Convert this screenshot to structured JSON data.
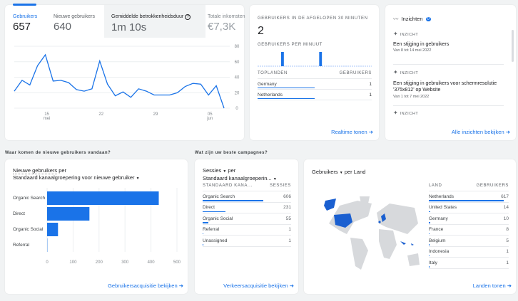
{
  "overview": {
    "tabs": [
      {
        "label": "Gebruikers",
        "value": "657",
        "active": true
      },
      {
        "label": "Nieuwe gebruikers",
        "value": "640"
      },
      {
        "label": "Gemiddelde betrokkenheidsduur",
        "value": "1m 10s"
      },
      {
        "label": "Totale inkomsten",
        "value": "€7,3K"
      }
    ]
  },
  "chart_data": {
    "type": "line",
    "x": [
      "11 mei",
      "12 mei",
      "13 mei",
      "14 mei",
      "15 mei",
      "16 mei",
      "17 mei",
      "18 mei",
      "19 mei",
      "20 mei",
      "21 mei",
      "22 mei",
      "23 mei",
      "24 mei",
      "25 mei",
      "26 mei",
      "27 mei",
      "28 mei",
      "29 mei",
      "30 mei",
      "31 mei",
      "1 jun",
      "2 jun",
      "3 jun",
      "4 jun",
      "5 jun",
      "6 jun",
      "7 jun"
    ],
    "values": [
      22,
      36,
      30,
      55,
      69,
      35,
      36,
      33,
      24,
      22,
      25,
      61,
      31,
      16,
      21,
      14,
      25,
      22,
      17,
      17,
      17,
      20,
      28,
      32,
      31,
      17,
      29,
      0
    ],
    "ylim": [
      0,
      80
    ],
    "yticks": [
      "0",
      "20",
      "40",
      "60",
      "80"
    ],
    "xticks": [
      {
        "label": "15",
        "sub": "mei",
        "index": 4
      },
      {
        "label": "22",
        "sub": "",
        "index": 11
      },
      {
        "label": "29",
        "sub": "",
        "index": 18
      },
      {
        "label": "05",
        "sub": "jun",
        "index": 25
      }
    ],
    "color": "#1a73e8",
    "grid": true
  },
  "realtime": {
    "title": "Gebruikers in de afgelopen 30 minuten",
    "value": "2",
    "per_minute": "Gebruikers per minuut",
    "bars": [
      0,
      0,
      0,
      0,
      0,
      0,
      1,
      0,
      0,
      0,
      0,
      0,
      0,
      0,
      0,
      0,
      1,
      0,
      0,
      0,
      0,
      0,
      0,
      0,
      0,
      0,
      0,
      0,
      0,
      0
    ],
    "col1": "Toplanden",
    "col2": "Gebruikers",
    "rows": [
      {
        "name": "Germany",
        "value": "1",
        "share": 0.5
      },
      {
        "name": "Netherlands",
        "value": "1",
        "share": 0.5
      }
    ],
    "link": "Realtime tonen"
  },
  "insights": {
    "title": "Inzichten",
    "badge": "0",
    "items": [
      {
        "tag": "Inzicht",
        "title": "Een stijging in gebruikers",
        "sub": "Van 8 tot 14 mei 2022"
      },
      {
        "tag": "Inzicht",
        "title": "Een stijging in gebruikers voor schermresolutie '375x812' op Website",
        "sub": "Van 1 tot 7 mei 2022"
      },
      {
        "tag": "Inzicht",
        "title": "",
        "sub": ""
      }
    ],
    "link": "Alle inzichten bekijken"
  },
  "new_users": {
    "section": "Waar komen de nieuwe gebruikers vandaan?",
    "metric": "Nieuwe gebruikers",
    "per": "per",
    "dimension": "Standaard kanaalgroepering voor nieuwe gebruiker",
    "chart": {
      "type": "bar",
      "categories": [
        "Organic Search",
        "Direct",
        "Organic Social",
        "Referral"
      ],
      "values": [
        430,
        163,
        42,
        1
      ],
      "xlim": [
        0,
        500
      ],
      "xticks": [
        "0",
        "100",
        "200",
        "300",
        "400",
        "500"
      ]
    },
    "link": "Gebruikersacquisitie bekijken"
  },
  "campaigns": {
    "section": "Wat zijn uw beste campagnes?",
    "metric": "Sessies",
    "per": "per",
    "dimension": "Standaard kanaalgroeperin...",
    "col1": "Standaard kana...",
    "col2": "Sessies",
    "rows": [
      {
        "name": "Organic Search",
        "value": "606",
        "share": 1
      },
      {
        "name": "Direct",
        "value": "231",
        "share": 0.38
      },
      {
        "name": "Organic Social",
        "value": "55",
        "share": 0.09
      },
      {
        "name": "Referral",
        "value": "1",
        "share": 0
      },
      {
        "name": "Unassigned",
        "value": "1",
        "share": 0
      }
    ],
    "link": "Verkeersacquisitie bekijken"
  },
  "countries": {
    "metric": "Gebruikers",
    "per": "per Land",
    "col1": "Land",
    "col2": "Gebruikers",
    "rows": [
      {
        "name": "Netherlands",
        "value": "617",
        "share": 1
      },
      {
        "name": "United States",
        "value": "14",
        "share": 0.02
      },
      {
        "name": "Germany",
        "value": "10",
        "share": 0.015
      },
      {
        "name": "France",
        "value": "8",
        "share": 0.01
      },
      {
        "name": "Belgium",
        "value": "5",
        "share": 0.01
      },
      {
        "name": "Indonesia",
        "value": "1",
        "share": 0
      },
      {
        "name": "Italy",
        "value": "1",
        "share": 0
      }
    ],
    "link": "Landen tonen"
  }
}
